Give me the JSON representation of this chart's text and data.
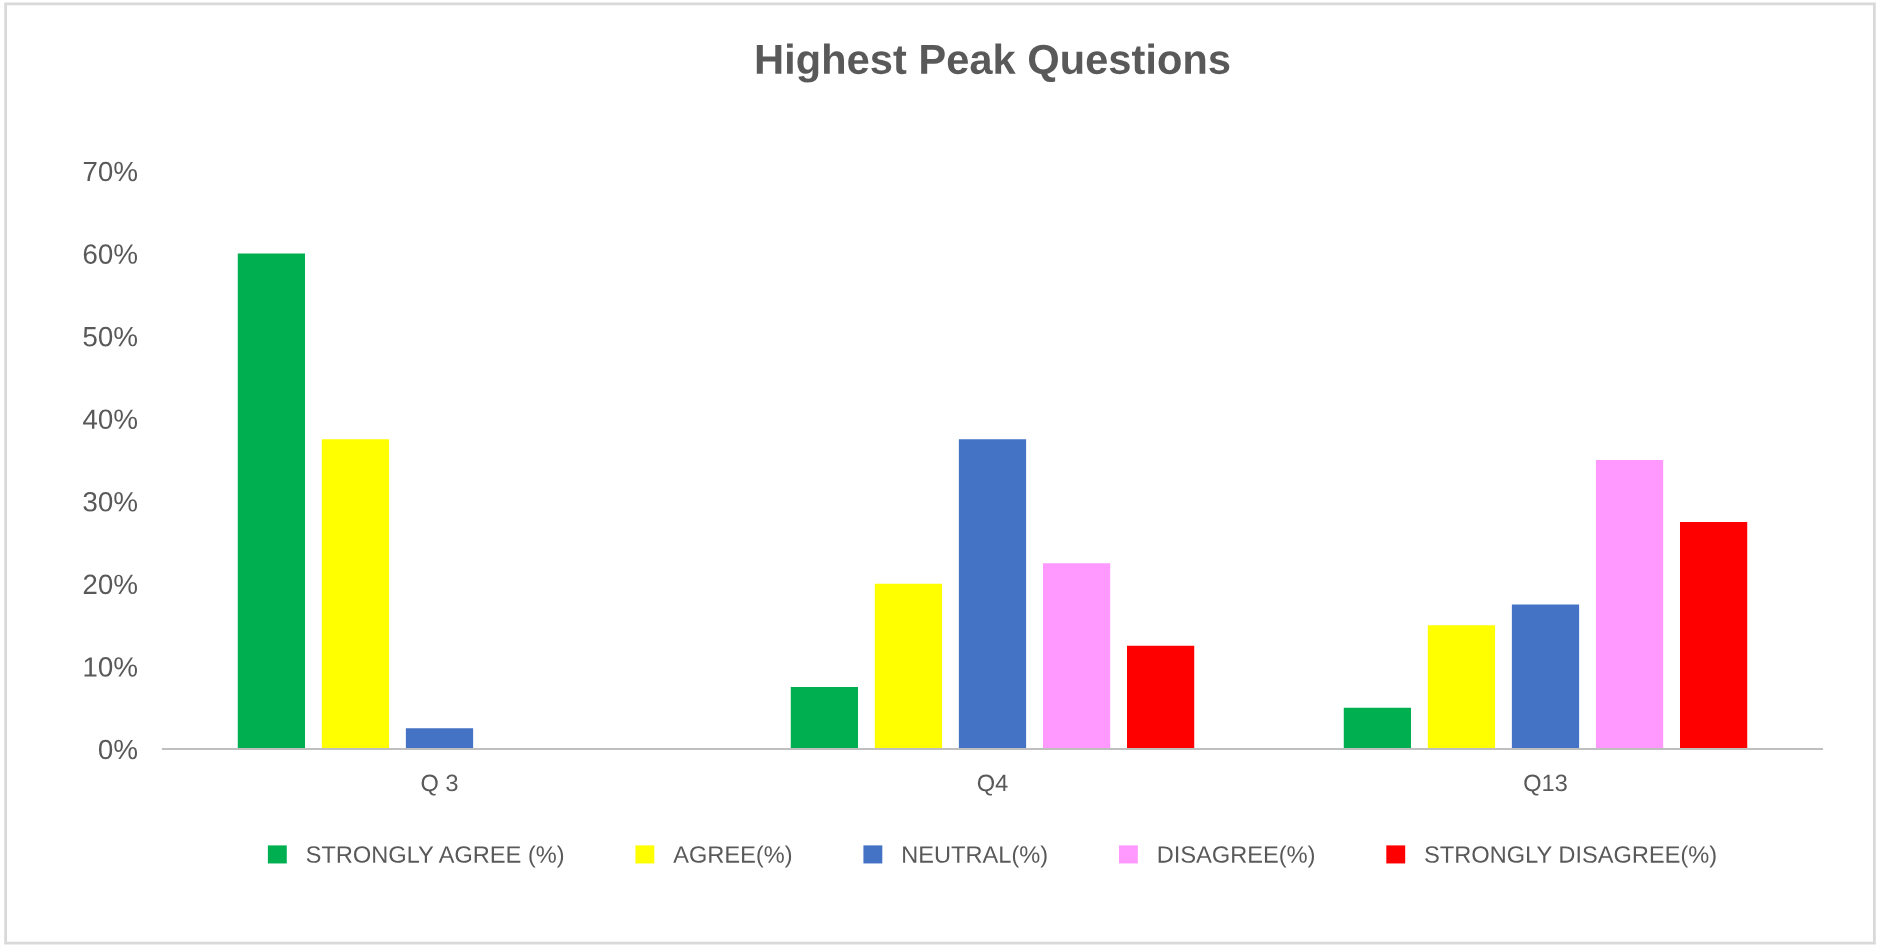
{
  "chart_data": {
    "type": "bar",
    "title": "Highest Peak Questions",
    "categories": [
      "Q 3",
      "Q4",
      "Q13"
    ],
    "series": [
      {
        "name": "STRONGLY AGREE (%)",
        "color": "#00b050",
        "values": [
          60,
          7.5,
          5
        ]
      },
      {
        "name": "AGREE(%)",
        "color": "#ffff00",
        "values": [
          37.5,
          20,
          15
        ]
      },
      {
        "name": "NEUTRAL(%)",
        "color": "#4472c4",
        "values": [
          2.5,
          37.5,
          17.5
        ]
      },
      {
        "name": "DISAGREE(%)",
        "color": "#ff99ff",
        "values": [
          0,
          22.5,
          35
        ]
      },
      {
        "name": "STRONGLY DISAGREE(%)",
        "color": "#ff0000",
        "values": [
          0,
          12.5,
          27.5
        ]
      }
    ],
    "ylim": [
      0,
      70
    ],
    "yticks": [
      {
        "value": 0,
        "label": "0%"
      },
      {
        "value": 10,
        "label": "10%"
      },
      {
        "value": 20,
        "label": "20%"
      },
      {
        "value": 30,
        "label": "30%"
      },
      {
        "value": 40,
        "label": "40%"
      },
      {
        "value": 50,
        "label": "50%"
      },
      {
        "value": 60,
        "label": "60%"
      },
      {
        "value": 70,
        "label": "70%"
      }
    ],
    "grid": false,
    "legend": "bottom"
  }
}
